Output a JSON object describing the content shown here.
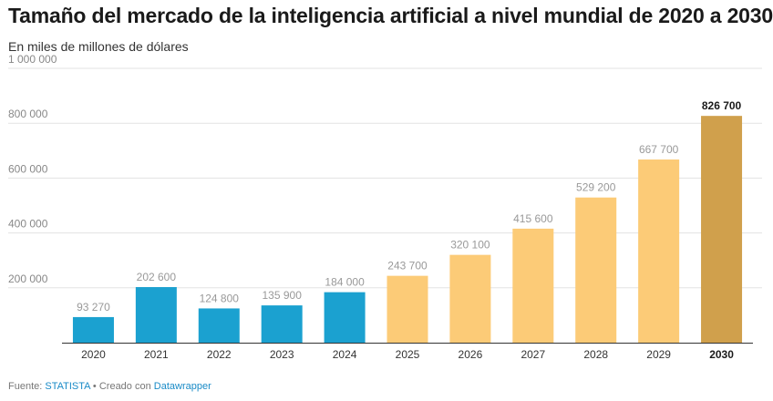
{
  "chart_data": {
    "type": "bar",
    "title": "Tamaño del mercado de la inteligencia artificial a nivel mundial de 2020 a 2030",
    "subtitle": "En miles de millones de dólares",
    "xlabel": "",
    "ylabel": "",
    "ylim": [
      0,
      1000000
    ],
    "yticks": [
      200000,
      400000,
      600000,
      800000,
      1000000
    ],
    "ytick_labels": [
      "200 000",
      "400 000",
      "600 000",
      "800 000",
      "1 000 000"
    ],
    "grid": true,
    "categories": [
      "2020",
      "2021",
      "2022",
      "2023",
      "2024",
      "2025",
      "2026",
      "2027",
      "2028",
      "2029",
      "2030"
    ],
    "values": [
      93270,
      202600,
      124800,
      135900,
      184000,
      243700,
      320100,
      415600,
      529200,
      667700,
      826700
    ],
    "value_labels": [
      "93 270",
      "202 600",
      "124 800",
      "135 900",
      "184 000",
      "243 700",
      "320 100",
      "415 600",
      "529 200",
      "667 700",
      "826 700"
    ],
    "bar_colors": [
      "#1ba1d0",
      "#1ba1d0",
      "#1ba1d0",
      "#1ba1d0",
      "#1ba1d0",
      "#fccb77",
      "#fccb77",
      "#fccb77",
      "#fccb77",
      "#fccb77",
      "#d0a04c"
    ],
    "highlight_category": "2030"
  },
  "footer": {
    "source_label": "Fuente: ",
    "source_name": "STATISTA",
    "separator": " • Creado con ",
    "tool_name": "Datawrapper"
  }
}
